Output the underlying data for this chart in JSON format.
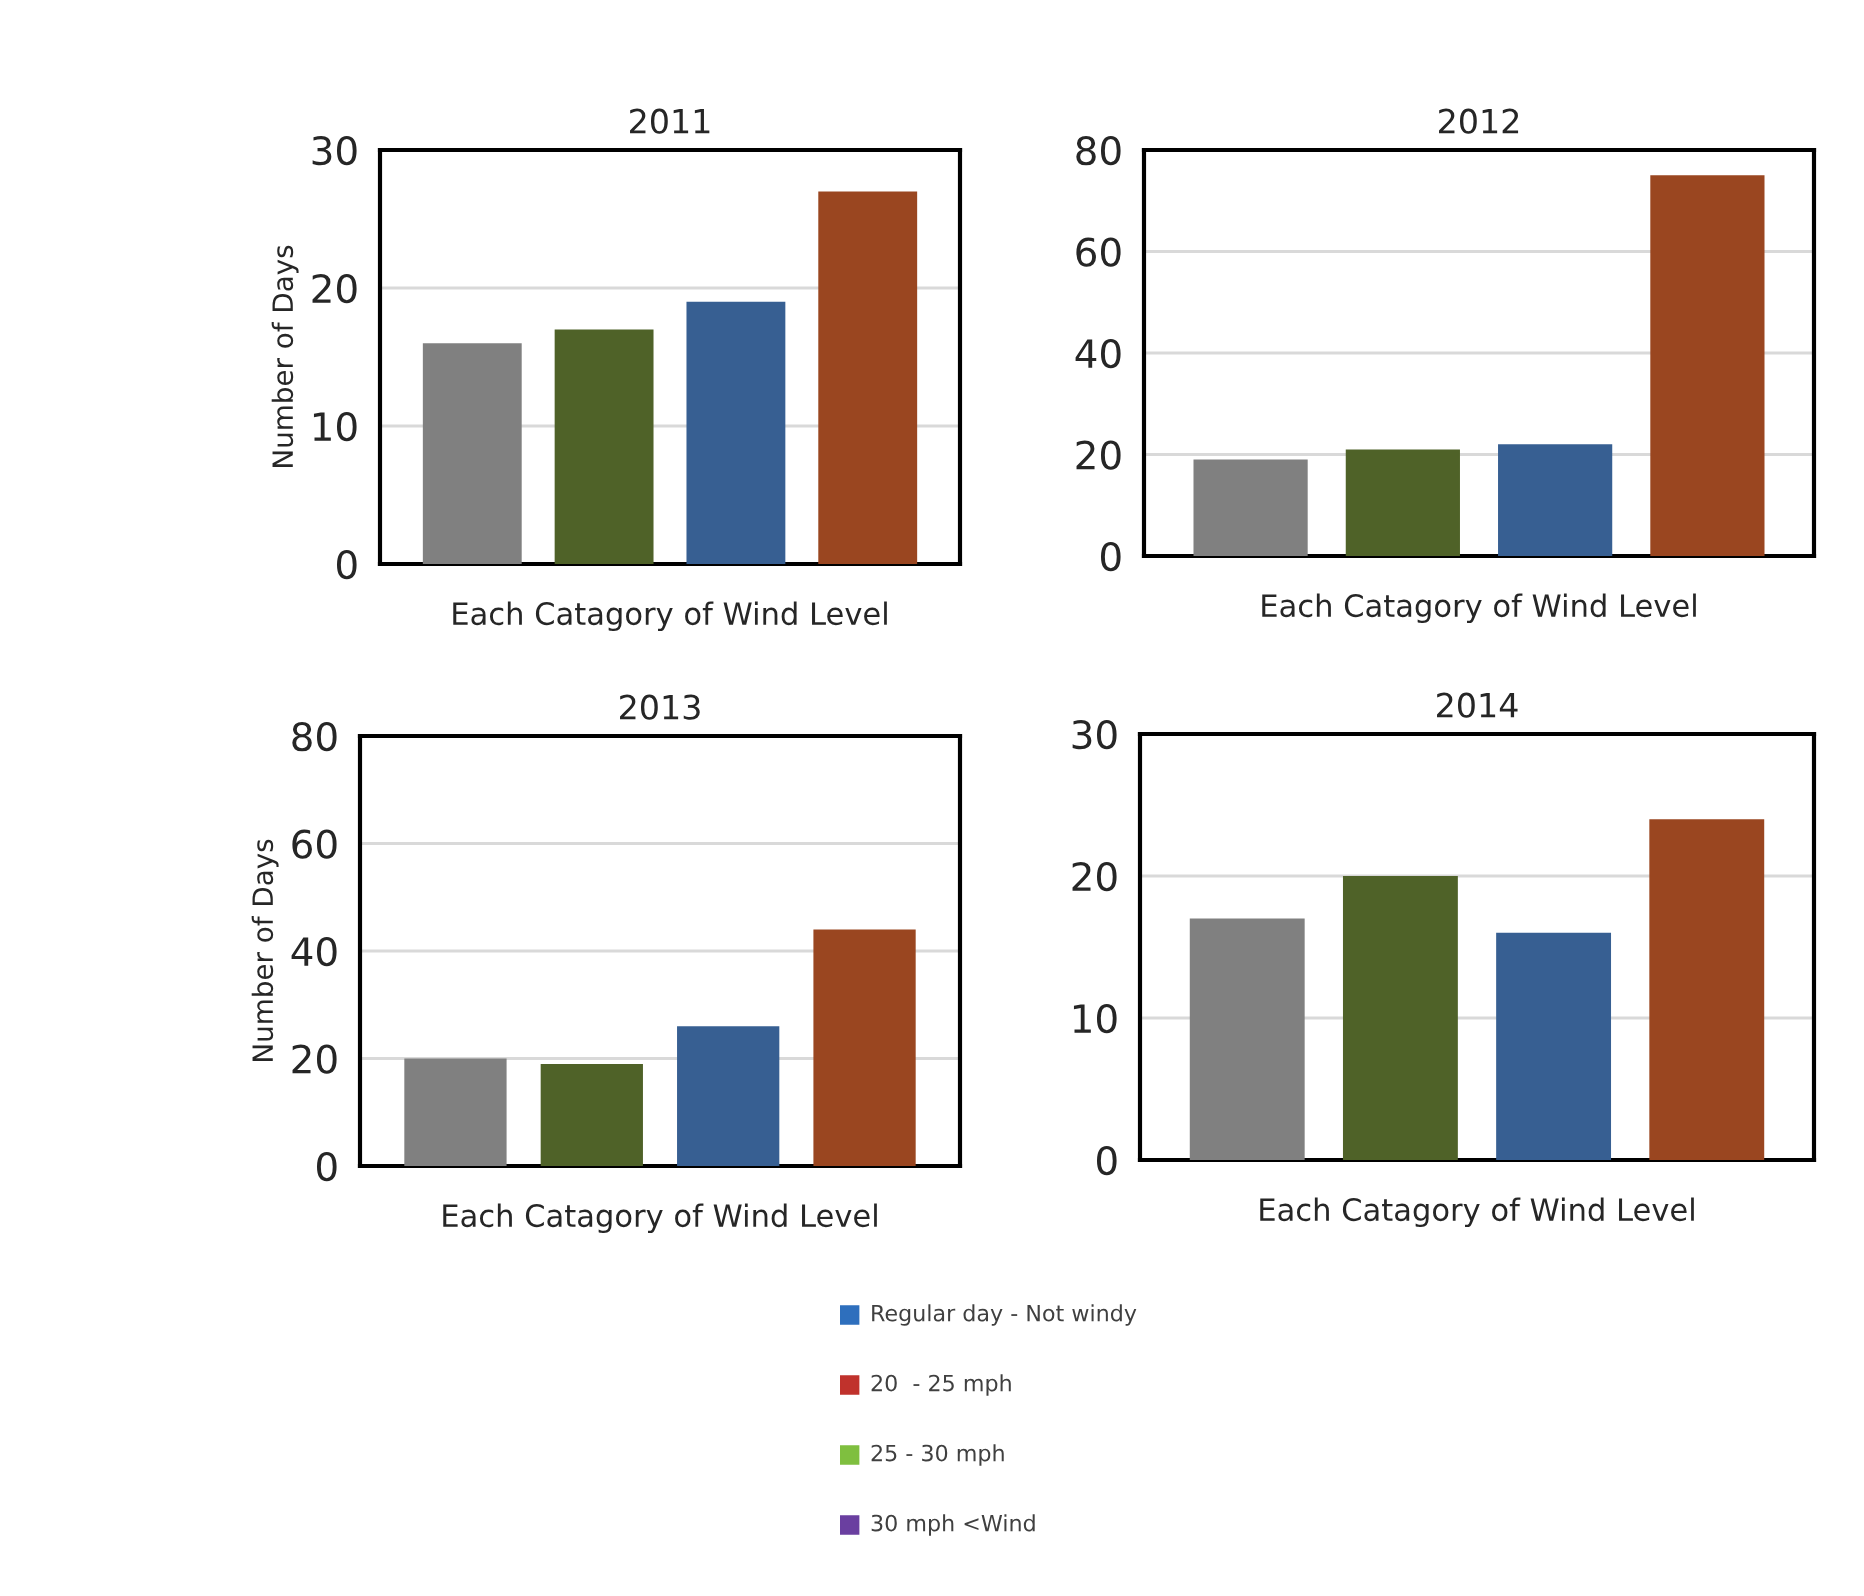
{
  "chart_data": [
    {
      "type": "bar",
      "title": "2011",
      "xlabel": "Each Catagory of Wind Level",
      "ylabel": "Number of Days",
      "categories": [
        null,
        null,
        null,
        null
      ],
      "values": [
        16,
        17,
        19,
        27
      ],
      "colors": [
        "#808080",
        "#4f6228",
        "#375f92",
        "#9a4620"
      ],
      "ylim": [
        0,
        30
      ],
      "yticks": [
        0,
        10,
        20,
        30
      ],
      "grid": "y"
    },
    {
      "type": "bar",
      "title": "2012",
      "xlabel": "Each Catagory of Wind Level",
      "categories": [
        null,
        null,
        null,
        null
      ],
      "values": [
        19,
        21,
        22,
        75
      ],
      "colors": [
        "#808080",
        "#4f6228",
        "#375f92",
        "#9a4620"
      ],
      "ylim": [
        0,
        80
      ],
      "yticks": [
        0,
        20,
        40,
        60,
        80
      ],
      "grid": "y"
    },
    {
      "type": "bar",
      "title": "2013",
      "xlabel": "Each Catagory of Wind Level",
      "ylabel": "Number of Days",
      "categories": [
        null,
        null,
        null,
        null
      ],
      "values": [
        20,
        19,
        26,
        44
      ],
      "colors": [
        "#808080",
        "#4f6228",
        "#375f92",
        "#9a4620"
      ],
      "ylim": [
        0,
        80
      ],
      "yticks": [
        0,
        20,
        40,
        60,
        80
      ],
      "grid": "y"
    },
    {
      "type": "bar",
      "title": "2014",
      "xlabel": "Each Catagory of Wind Level",
      "categories": [
        null,
        null,
        null,
        null
      ],
      "values": [
        17,
        20,
        16,
        24
      ],
      "colors": [
        "#808080",
        "#4f6228",
        "#375f92",
        "#9a4620"
      ],
      "ylim": [
        0,
        30
      ],
      "yticks": [
        0,
        10,
        20,
        30
      ],
      "grid": "y"
    },
    {
      "type": "other",
      "categories": [
        "Regular day - Not windy",
        "20  - 25 mph",
        "25 - 30 mph",
        "30 mph <Wind"
      ],
      "colors": [
        "#2e6fbd",
        "#c0322c",
        "#7fbf3f",
        "#6a3fa0"
      ]
    }
  ]
}
